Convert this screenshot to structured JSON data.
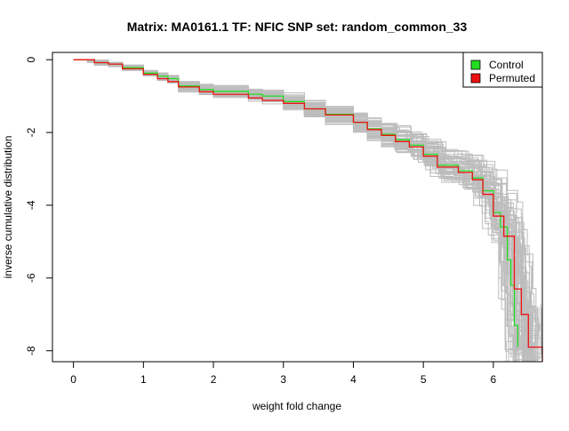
{
  "chart_data": {
    "type": "line",
    "title": "Matrix: MA0161.1 TF: NFIC SNP set: random_common_33",
    "xlabel": "weight fold change",
    "ylabel": "inverse cumulative distribution",
    "xlim": [
      -0.3,
      6.7
    ],
    "ylim": [
      -8.3,
      0.2
    ],
    "x_ticks": [
      0,
      1,
      2,
      3,
      4,
      5,
      6
    ],
    "y_ticks": [
      0,
      -2,
      -4,
      -6,
      -8
    ],
    "grid": false,
    "legend": {
      "position": "top-right",
      "entries": [
        {
          "label": "Control",
          "color": "#22dd22"
        },
        {
          "label": "Permuted",
          "color": "#ee1111"
        }
      ]
    },
    "series": [
      {
        "name": "Control",
        "color": "#22dd22",
        "x": [
          0.0,
          0.2,
          0.3,
          0.5,
          0.7,
          1.0,
          1.2,
          1.35,
          1.5,
          1.8,
          2.0,
          2.5,
          2.7,
          3.0,
          3.3,
          3.6,
          4.0,
          4.2,
          4.4,
          4.6,
          4.8,
          5.0,
          5.2,
          5.5,
          5.7,
          5.85,
          6.0,
          6.1,
          6.2,
          6.25,
          6.3,
          6.35
        ],
        "y": [
          0.0,
          0.0,
          -0.08,
          -0.12,
          -0.22,
          -0.37,
          -0.45,
          -0.52,
          -0.72,
          -0.82,
          -0.87,
          -0.95,
          -1.0,
          -1.15,
          -1.35,
          -1.5,
          -1.72,
          -1.9,
          -2.05,
          -2.2,
          -2.35,
          -2.6,
          -2.9,
          -3.05,
          -3.25,
          -3.6,
          -4.2,
          -4.6,
          -5.5,
          -6.2,
          -7.3,
          -7.9
        ]
      },
      {
        "name": "Permuted",
        "color": "#ee1111",
        "x": [
          0.0,
          0.2,
          0.3,
          0.5,
          0.7,
          1.0,
          1.2,
          1.35,
          1.5,
          1.8,
          2.0,
          2.5,
          2.7,
          3.0,
          3.3,
          3.6,
          4.0,
          4.2,
          4.4,
          4.6,
          4.8,
          5.0,
          5.2,
          5.5,
          5.7,
          5.85,
          6.0,
          6.15,
          6.3,
          6.4,
          6.5,
          6.6,
          6.7
        ],
        "y": [
          0.0,
          0.0,
          -0.08,
          -0.12,
          -0.25,
          -0.4,
          -0.52,
          -0.6,
          -0.75,
          -0.88,
          -0.95,
          -1.05,
          -1.12,
          -1.2,
          -1.35,
          -1.52,
          -1.72,
          -1.92,
          -2.08,
          -2.25,
          -2.4,
          -2.65,
          -2.95,
          -3.1,
          -3.3,
          -3.7,
          -4.3,
          -4.85,
          -6.3,
          -7.0,
          -7.9,
          -7.9,
          -8.3
        ]
      }
    ]
  }
}
